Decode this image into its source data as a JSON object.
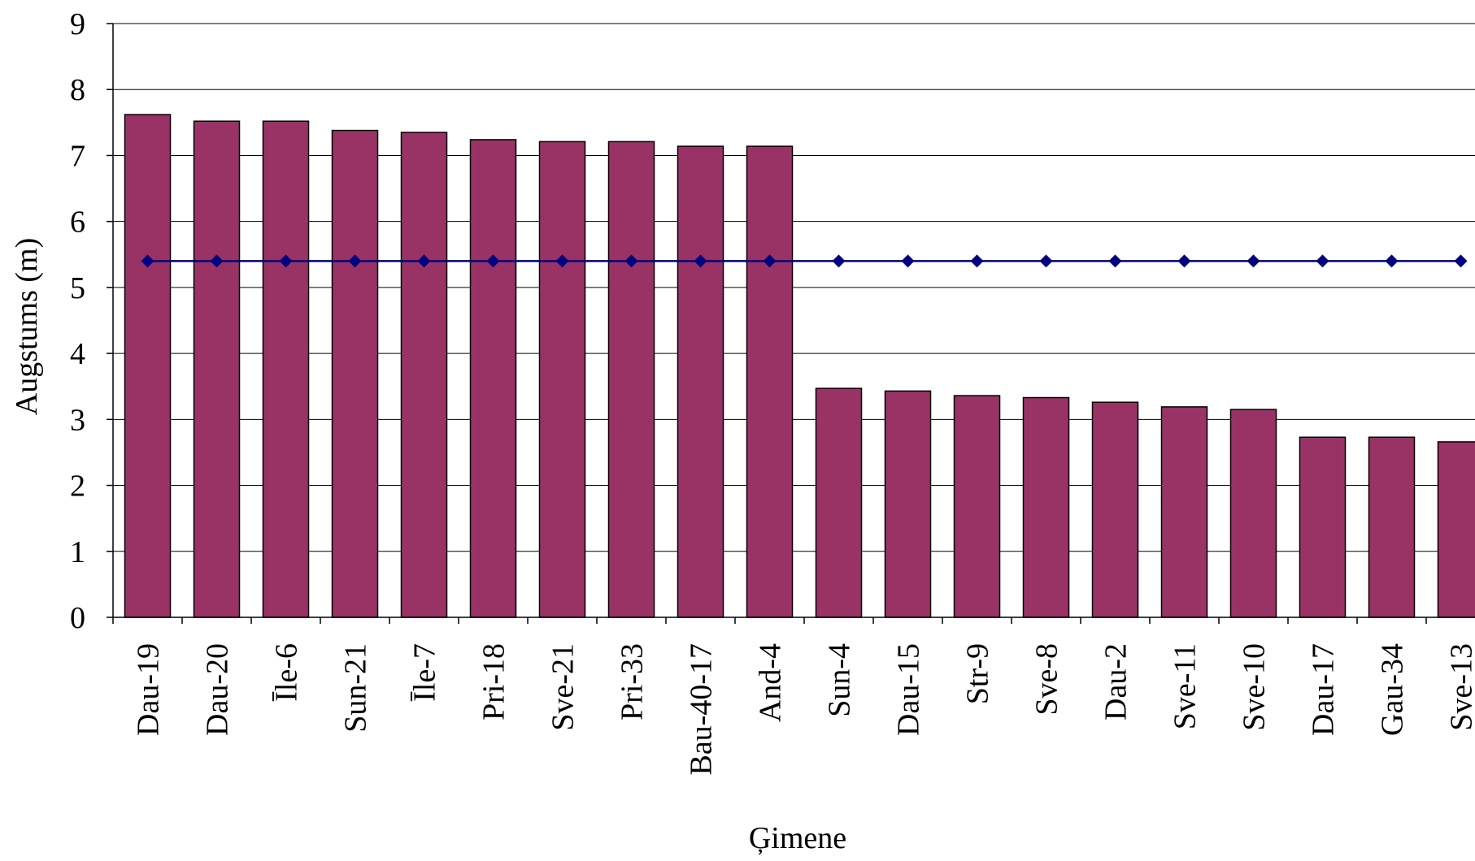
{
  "chart_data": {
    "type": "bar",
    "xlabel": "Ģimene",
    "ylabel": "Augstums (m)",
    "ylim": [
      0,
      9
    ],
    "yticks": [
      "0",
      "1",
      "2",
      "3",
      "4",
      "5",
      "6",
      "7",
      "8",
      "9"
    ],
    "grid": "horizontal",
    "categories": [
      "Dau-19",
      "Dau-20",
      "Īle-6",
      "Sun-21",
      "Īle-7",
      "Pri-18",
      "Sve-21",
      "Pri-33",
      "Bau-40-17",
      "And-4",
      "Sun-4",
      "Dau-15",
      "Str-9",
      "Sve-8",
      "Dau-2",
      "Sve-11",
      "Sve-10",
      "Dau-17",
      "Gau-34",
      "Sve-13"
    ],
    "series": [
      {
        "type": "bar",
        "color": "#993366",
        "values": [
          7.62,
          7.52,
          7.52,
          7.38,
          7.35,
          7.24,
          7.21,
          7.21,
          7.14,
          7.14,
          3.47,
          3.43,
          3.36,
          3.33,
          3.26,
          3.19,
          3.15,
          2.73,
          2.73,
          2.66
        ]
      },
      {
        "type": "line",
        "color": "#000080",
        "marker": "diamond",
        "values": [
          5.4,
          5.4,
          5.4,
          5.4,
          5.4,
          5.4,
          5.4,
          5.4,
          5.4,
          5.4,
          5.4,
          5.4,
          5.4,
          5.4,
          5.4,
          5.4,
          5.4,
          5.4,
          5.4,
          5.4
        ]
      }
    ]
  }
}
